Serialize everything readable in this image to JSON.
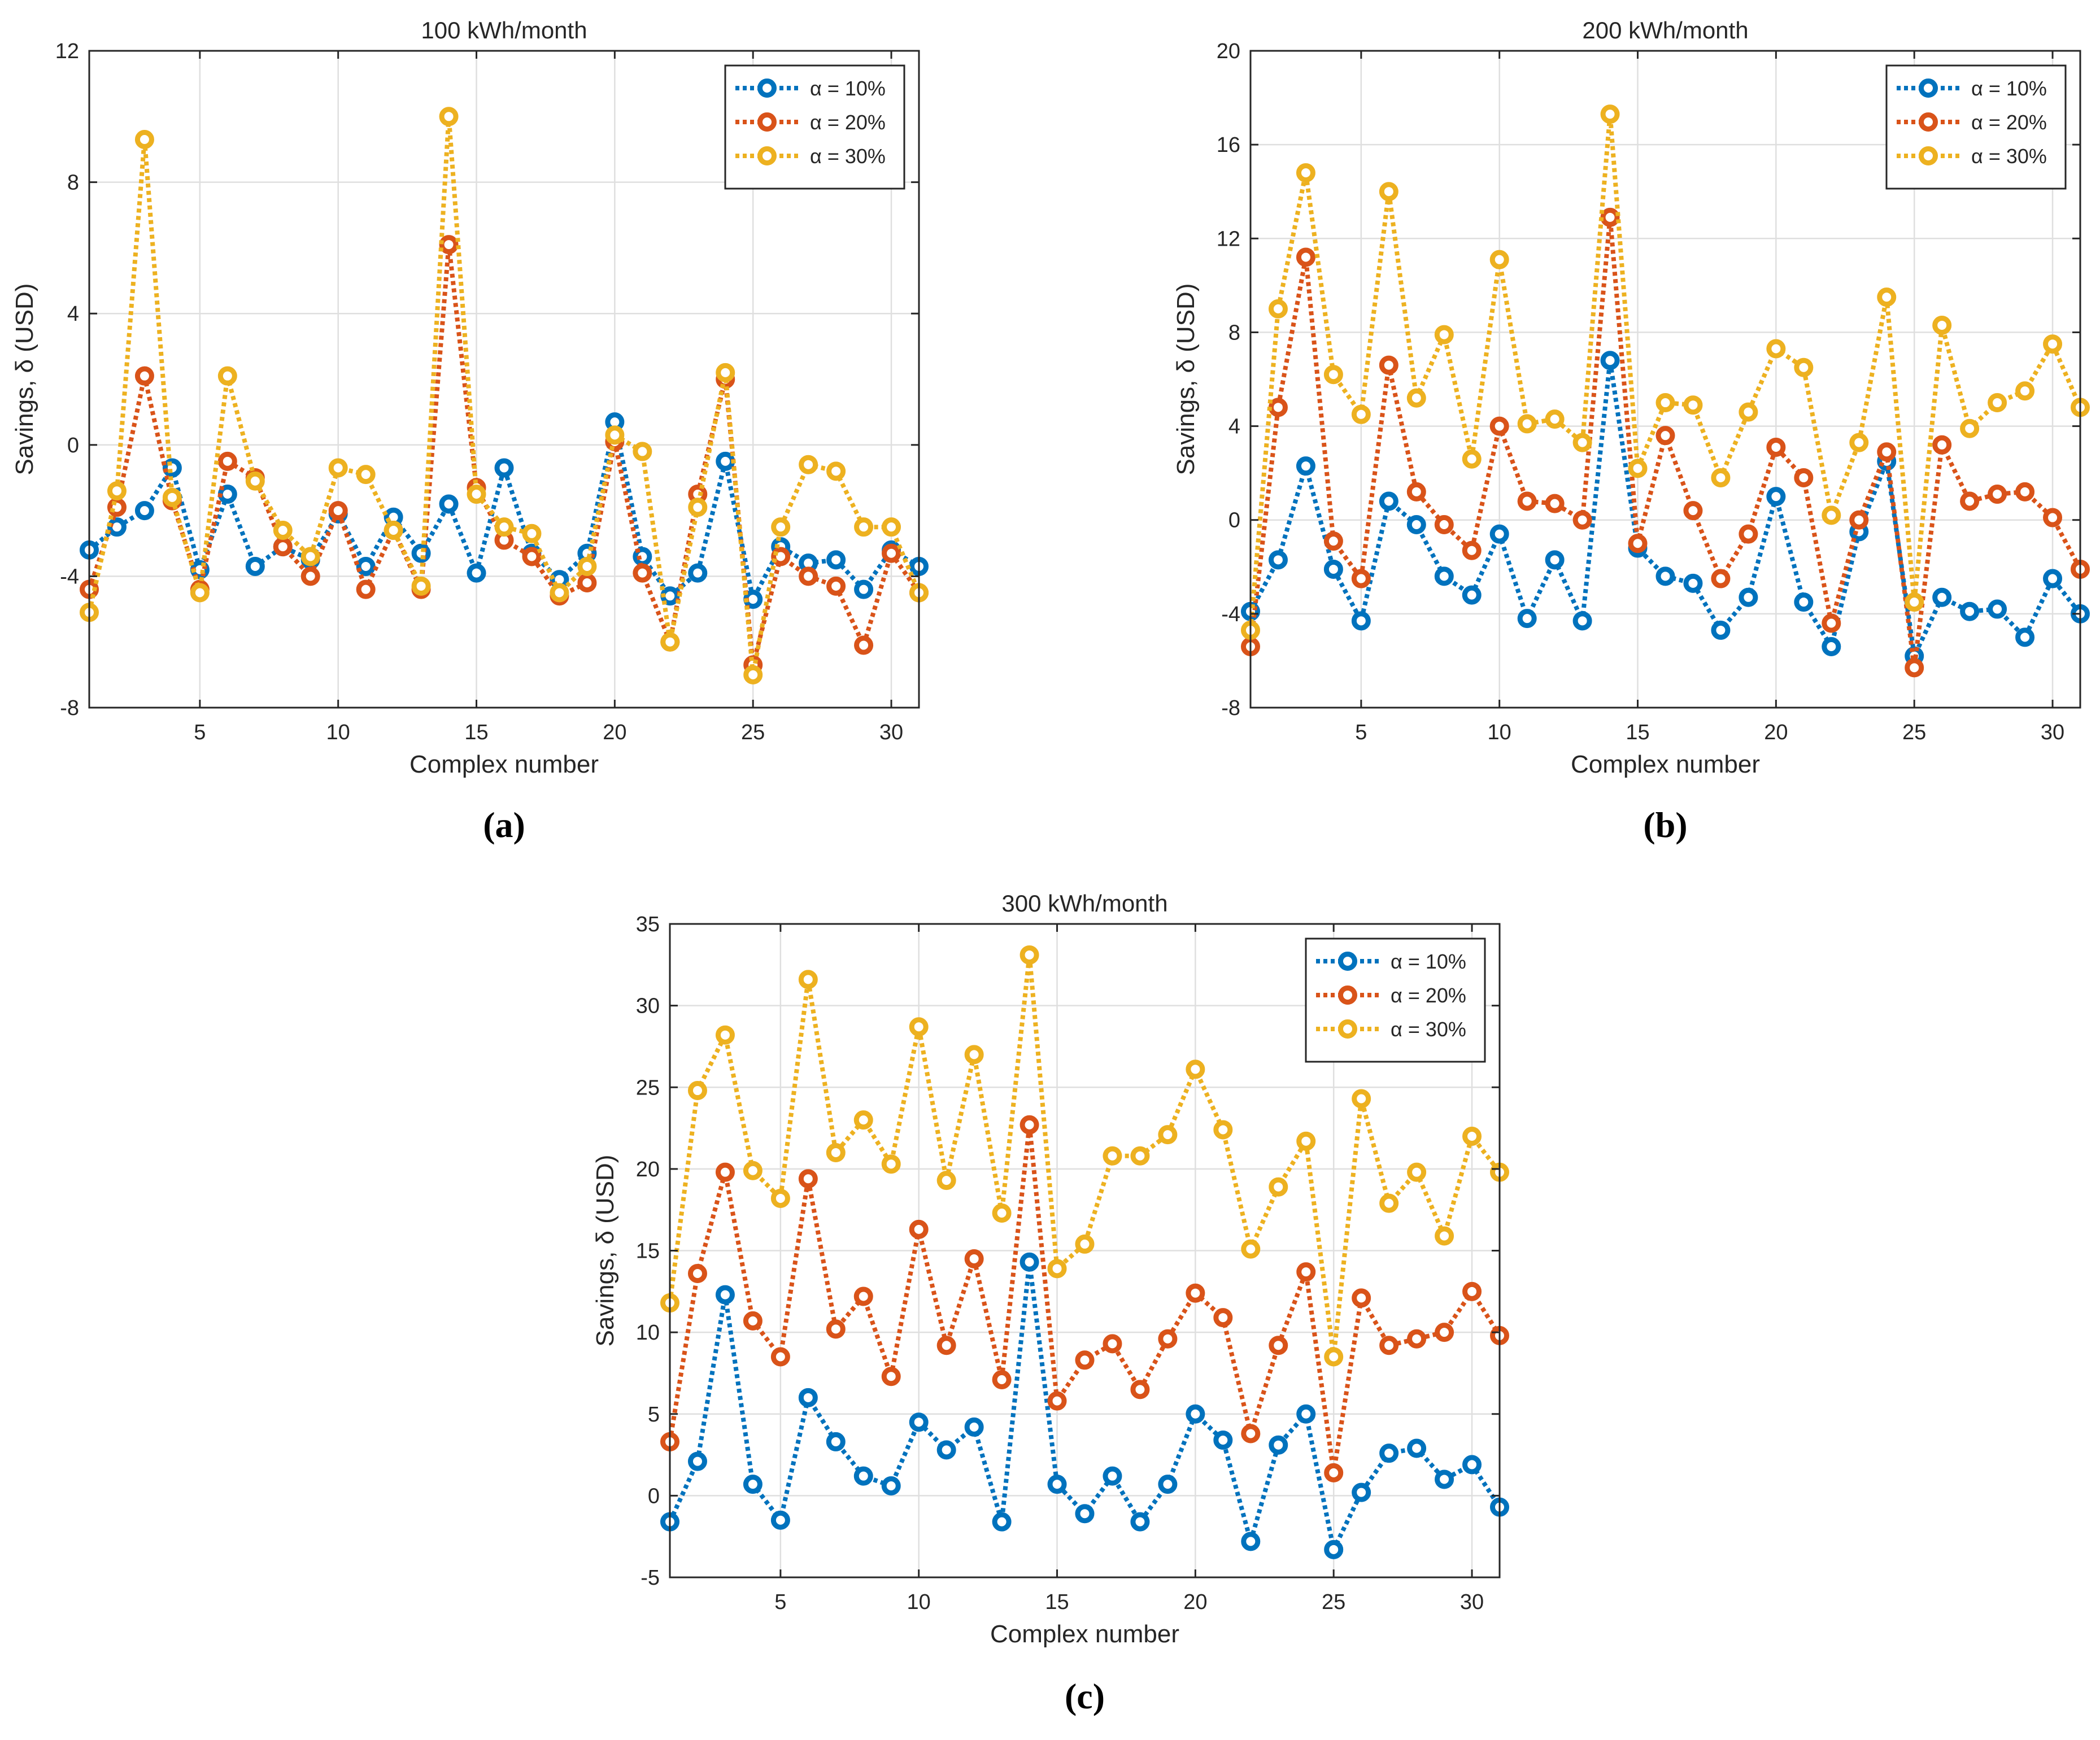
{
  "colors": {
    "alpha10": "#0072BD",
    "alpha20": "#D95319",
    "alpha30": "#EDB120",
    "grid": "#DFDFDF",
    "axis": "#262626"
  },
  "chart_data": [
    {
      "type": "line",
      "panel_label": "(a)",
      "title": "100 kWh/month",
      "xlabel": "Complex number",
      "ylabel": "Savings, δ (USD)",
      "xlim": [
        1,
        31
      ],
      "ylim": [
        -8,
        12
      ],
      "xticks": [
        5,
        10,
        15,
        20,
        25,
        30
      ],
      "yticks": [
        -8,
        -4,
        0,
        4,
        8,
        12
      ],
      "grid": true,
      "legend_position": "top-right",
      "x": [
        1,
        2,
        3,
        4,
        5,
        6,
        7,
        8,
        9,
        10,
        11,
        12,
        13,
        14,
        15,
        16,
        17,
        18,
        19,
        20,
        21,
        22,
        23,
        24,
        25,
        26,
        27,
        28,
        29,
        30,
        31
      ],
      "series": [
        {
          "name": "α = 10%",
          "color_key": "alpha10",
          "values": [
            -3.2,
            -2.5,
            -2.0,
            -0.7,
            -3.8,
            -1.5,
            -3.7,
            -3.1,
            -3.5,
            -2.1,
            -3.7,
            -2.2,
            -3.3,
            -1.8,
            -3.9,
            -0.7,
            -3.3,
            -4.1,
            -3.3,
            0.7,
            -3.4,
            -4.6,
            -3.9,
            -0.5,
            -4.7,
            -3.1,
            -3.6,
            -3.5,
            -4.4,
            -3.2,
            -3.7
          ]
        },
        {
          "name": "α = 20%",
          "color_key": "alpha20",
          "values": [
            -4.4,
            -1.9,
            2.1,
            -1.7,
            -4.4,
            -0.5,
            -1.0,
            -3.1,
            -4.0,
            -2.0,
            -4.4,
            -2.6,
            -4.4,
            6.1,
            -1.3,
            -2.9,
            -3.4,
            -4.6,
            -4.2,
            0.1,
            -3.9,
            -6.0,
            -1.5,
            2.0,
            -6.7,
            -3.4,
            -4.0,
            -4.3,
            -6.1,
            -3.3,
            -4.5
          ]
        },
        {
          "name": "α = 30%",
          "color_key": "alpha30",
          "values": [
            -5.1,
            -1.4,
            9.3,
            -1.6,
            -4.5,
            2.1,
            -1.1,
            -2.6,
            -3.4,
            -0.7,
            -0.9,
            -2.6,
            -4.3,
            10.0,
            -1.5,
            -2.5,
            -2.7,
            -4.5,
            -3.7,
            0.3,
            -0.2,
            -6.0,
            -1.9,
            2.2,
            -7.0,
            -2.5,
            -0.6,
            -0.8,
            -2.5,
            -2.5,
            -4.5
          ]
        }
      ]
    },
    {
      "type": "line",
      "panel_label": "(b)",
      "title": "200 kWh/month",
      "xlabel": "Complex number",
      "ylabel": "Savings, δ (USD)",
      "xlim": [
        1,
        31
      ],
      "ylim": [
        -8,
        20
      ],
      "xticks": [
        5,
        10,
        15,
        20,
        25,
        30
      ],
      "yticks": [
        -8,
        -4,
        0,
        4,
        8,
        12,
        16,
        20
      ],
      "grid": true,
      "legend_position": "top-right",
      "x": [
        1,
        2,
        3,
        4,
        5,
        6,
        7,
        8,
        9,
        10,
        11,
        12,
        13,
        14,
        15,
        16,
        17,
        18,
        19,
        20,
        21,
        22,
        23,
        24,
        25,
        26,
        27,
        28,
        29,
        30,
        31
      ],
      "series": [
        {
          "name": "α = 10%",
          "color_key": "alpha10",
          "values": [
            -3.9,
            -1.7,
            2.3,
            -2.1,
            -4.3,
            0.8,
            -0.2,
            -2.4,
            -3.2,
            -0.6,
            -4.2,
            -1.7,
            -4.3,
            6.8,
            -1.2,
            -2.4,
            -2.7,
            -4.7,
            -3.3,
            1.0,
            -3.5,
            -5.4,
            -0.5,
            2.5,
            -5.8,
            -3.3,
            -3.9,
            -3.8,
            -5.0,
            -2.5,
            -4.0
          ]
        },
        {
          "name": "α = 20%",
          "color_key": "alpha20",
          "values": [
            -5.4,
            4.8,
            11.2,
            -0.9,
            -2.5,
            6.6,
            1.2,
            -0.2,
            -1.3,
            4.0,
            0.8,
            0.7,
            0.0,
            12.9,
            -1.0,
            3.6,
            0.4,
            -2.5,
            -0.6,
            3.1,
            1.8,
            -4.4,
            0.0,
            2.9,
            -6.3,
            3.2,
            0.8,
            1.1,
            1.2,
            0.1,
            -2.1
          ]
        },
        {
          "name": "α = 30%",
          "color_key": "alpha30",
          "values": [
            -4.7,
            9.0,
            14.8,
            6.2,
            4.5,
            14.0,
            5.2,
            7.9,
            2.6,
            11.1,
            4.1,
            4.3,
            3.3,
            17.3,
            2.2,
            5.0,
            4.9,
            1.8,
            4.6,
            7.3,
            6.5,
            0.2,
            3.3,
            9.5,
            -3.5,
            8.3,
            3.9,
            5.0,
            5.5,
            7.5,
            4.8
          ]
        }
      ]
    },
    {
      "type": "line",
      "panel_label": "(c)",
      "title": "300 kWh/month",
      "xlabel": "Complex number",
      "ylabel": "Savings, δ (USD)",
      "xlim": [
        1,
        31
      ],
      "ylim": [
        -5,
        35
      ],
      "xticks": [
        5,
        10,
        15,
        20,
        25,
        30
      ],
      "yticks": [
        -5,
        0,
        5,
        10,
        15,
        20,
        25,
        30,
        35
      ],
      "grid": true,
      "legend_position": "top-right",
      "x": [
        1,
        2,
        3,
        4,
        5,
        6,
        7,
        8,
        9,
        10,
        11,
        12,
        13,
        14,
        15,
        16,
        17,
        18,
        19,
        20,
        21,
        22,
        23,
        24,
        25,
        26,
        27,
        28,
        29,
        30,
        31
      ],
      "series": [
        {
          "name": "α = 10%",
          "color_key": "alpha10",
          "values": [
            -1.6,
            2.1,
            12.3,
            0.7,
            -1.5,
            6.0,
            3.3,
            1.2,
            0.6,
            4.5,
            2.8,
            4.2,
            -1.6,
            14.3,
            0.7,
            -1.1,
            1.2,
            -1.6,
            0.7,
            5.0,
            3.4,
            -2.8,
            3.1,
            5.0,
            -3.3,
            0.2,
            2.6,
            2.9,
            1.0,
            1.9,
            -0.7
          ]
        },
        {
          "name": "α = 20%",
          "color_key": "alpha20",
          "values": [
            3.3,
            13.6,
            19.8,
            10.7,
            8.5,
            19.4,
            10.2,
            12.2,
            7.3,
            16.3,
            9.2,
            14.5,
            7.1,
            22.7,
            5.8,
            8.3,
            9.3,
            6.5,
            9.6,
            12.4,
            10.9,
            3.8,
            9.2,
            13.7,
            1.4,
            12.1,
            9.2,
            9.6,
            10.0,
            12.5,
            9.8
          ]
        },
        {
          "name": "α = 30%",
          "color_key": "alpha30",
          "values": [
            11.8,
            24.8,
            28.2,
            19.9,
            18.2,
            31.6,
            21.0,
            23.0,
            20.3,
            28.7,
            19.3,
            27.0,
            17.3,
            33.1,
            13.9,
            15.4,
            20.8,
            20.8,
            22.1,
            26.1,
            22.4,
            15.1,
            18.9,
            21.7,
            8.5,
            24.3,
            17.9,
            19.8,
            15.9,
            22.0,
            19.8
          ]
        }
      ]
    }
  ]
}
